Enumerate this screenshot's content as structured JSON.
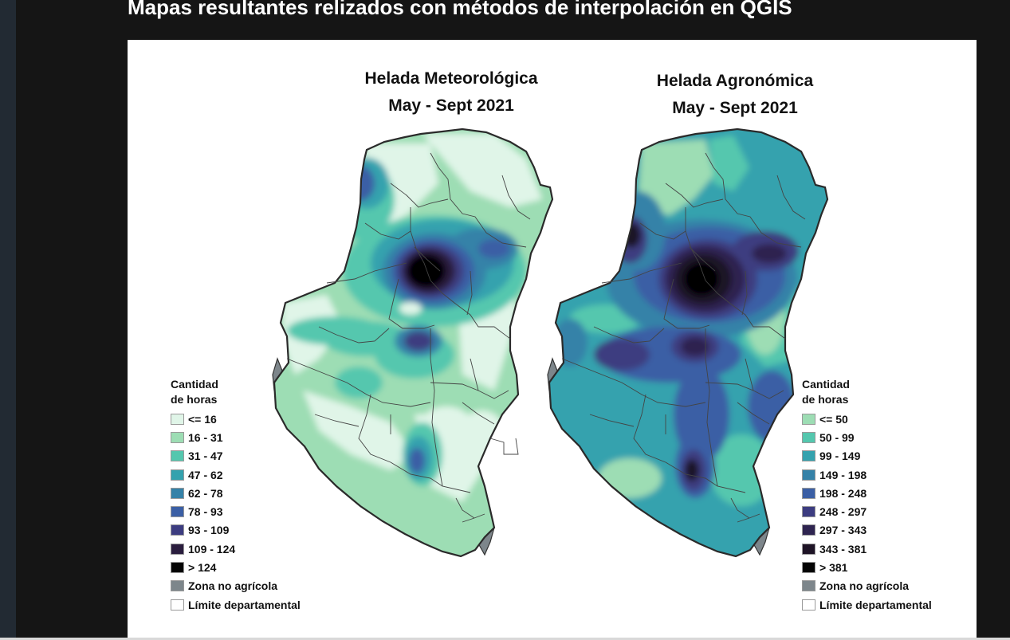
{
  "slide": {
    "title": "Mapas resultantes relizados con métodos de interpolación en QGIS"
  },
  "maps": [
    {
      "title_line1": "Helada Meteorológica",
      "title_line2": "May - Sept 2021",
      "legend": {
        "title": "Cantidad\nde horas",
        "items": [
          {
            "label": "<= 16",
            "color": "#e0f5e8"
          },
          {
            "label": "16 - 31",
            "color": "#9dddb4"
          },
          {
            "label": "31 - 47",
            "color": "#54c7ae"
          },
          {
            "label": "47 - 62",
            "color": "#34a2ae"
          },
          {
            "label": "62 - 78",
            "color": "#3582a8"
          },
          {
            "label": "78 - 93",
            "color": "#3b5fa5"
          },
          {
            "label": "93 - 109",
            "color": "#3c3c80"
          },
          {
            "label": "109 - 124",
            "color": "#2a1d3e"
          },
          {
            "label": "> 124",
            "color": "#050505"
          },
          {
            "label": "Zona no agrícola",
            "color": "#7d868b"
          },
          {
            "label": "Límite departamental",
            "color": "#ffffff"
          }
        ]
      }
    },
    {
      "title_line1": "Helada Agronómica",
      "title_line2": "May - Sept 2021",
      "legend": {
        "title": "Cantidad\nde horas",
        "items": [
          {
            "label": "<= 50",
            "color": "#9dddb4"
          },
          {
            "label": "50 - 99",
            "color": "#54c7ae"
          },
          {
            "label": "99 - 149",
            "color": "#34a2ae"
          },
          {
            "label": "149 - 198",
            "color": "#3582a8"
          },
          {
            "label": "198 - 248",
            "color": "#3b5fa5"
          },
          {
            "label": "248 - 297",
            "color": "#3c3c80"
          },
          {
            "label": "297 - 343",
            "color": "#2e2450"
          },
          {
            "label": "343 - 381",
            "color": "#1e1426"
          },
          {
            "label": "> 381",
            "color": "#050505"
          },
          {
            "label": "Zona no agrícola",
            "color": "#7d868b"
          },
          {
            "label": "Límite departamental",
            "color": "#ffffff"
          }
        ]
      }
    }
  ]
}
